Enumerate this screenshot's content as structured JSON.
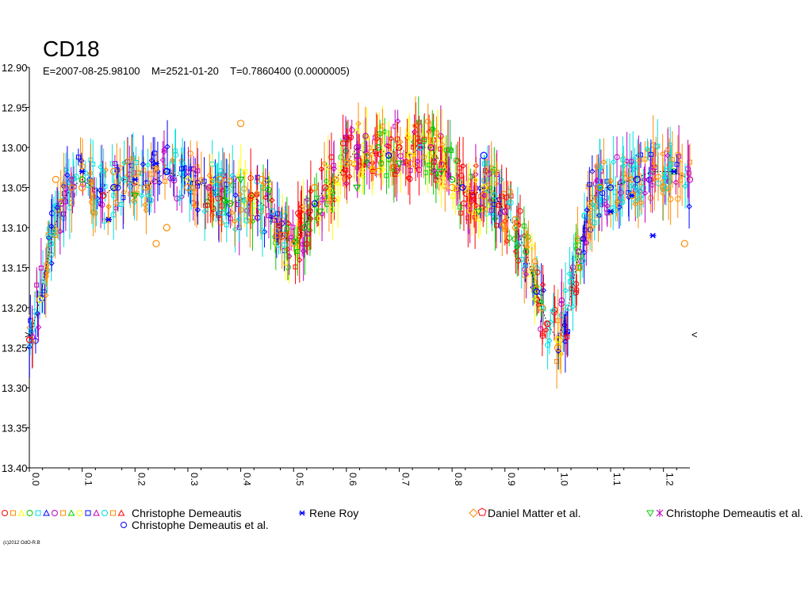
{
  "chart_data": {
    "type": "scatter",
    "title": "CD18",
    "subtitle": "E=2007-08-25.98100    M=2521-01-20    T=0.7860400 (0.0000005)",
    "xlabel": "",
    "ylabel": "",
    "xlim": [
      0.0,
      1.25
    ],
    "ylim": [
      13.4,
      12.9
    ],
    "x_ticks": [
      "0.0",
      "0.1",
      "0.2",
      "0.3",
      "0.4",
      "0.5",
      "0.6",
      "0.7",
      "0.8",
      "0.9",
      "1.0",
      "1.1",
      "1.2"
    ],
    "y_ticks": [
      "12.90",
      "12.95",
      "13.00",
      "13.05",
      "13.10",
      "13.15",
      "13.20",
      "13.25",
      "13.30",
      "13.35",
      "13.40"
    ],
    "grid": false,
    "legend_placement": "bottom",
    "limit_markers": [
      {
        "x": 0.0,
        "y": 13.24,
        "symbol": ">"
      },
      {
        "x": 1.25,
        "y": 13.24,
        "symbol": "<"
      }
    ],
    "series": [
      {
        "name": "Christophe Demeautis",
        "symbol": "mixed",
        "colors": [
          "#ff0000",
          "#ff8c00",
          "#ffff00",
          "#00c000",
          "#00e0e0",
          "#0000ff",
          "#c000c0"
        ],
        "points": [
          [
            0.0,
            13.24
          ],
          [
            0.02,
            13.19
          ],
          [
            0.04,
            13.12
          ],
          [
            0.06,
            13.07
          ],
          [
            0.08,
            13.05
          ],
          [
            0.1,
            13.04
          ],
          [
            0.14,
            13.06
          ],
          [
            0.18,
            13.04
          ],
          [
            0.22,
            13.05
          ],
          [
            0.26,
            13.03
          ],
          [
            0.3,
            13.04
          ],
          [
            0.34,
            13.05
          ],
          [
            0.38,
            13.07
          ],
          [
            0.42,
            13.06
          ],
          [
            0.46,
            13.08
          ],
          [
            0.48,
            13.11
          ],
          [
            0.5,
            13.12
          ],
          [
            0.52,
            13.1
          ],
          [
            0.54,
            13.07
          ],
          [
            0.56,
            13.05
          ],
          [
            0.58,
            13.04
          ],
          [
            0.6,
            13.02
          ],
          [
            0.62,
            13.0
          ],
          [
            0.64,
            13.01
          ],
          [
            0.66,
            13.0
          ],
          [
            0.68,
            13.01
          ],
          [
            0.7,
            13.0
          ],
          [
            0.72,
            13.01
          ],
          [
            0.74,
            13.0
          ],
          [
            0.76,
            13.0
          ],
          [
            0.78,
            13.02
          ],
          [
            0.8,
            13.04
          ],
          [
            0.82,
            13.05
          ],
          [
            0.84,
            13.06
          ],
          [
            0.86,
            13.05
          ],
          [
            0.88,
            13.06
          ],
          [
            0.9,
            13.08
          ],
          [
            0.92,
            13.1
          ],
          [
            0.94,
            13.13
          ],
          [
            0.96,
            13.18
          ],
          [
            0.98,
            13.22
          ],
          [
            1.0,
            13.24
          ],
          [
            1.02,
            13.2
          ],
          [
            1.04,
            13.13
          ],
          [
            1.06,
            13.07
          ],
          [
            1.08,
            13.05
          ],
          [
            1.1,
            13.05
          ],
          [
            1.14,
            13.04
          ],
          [
            1.18,
            13.03
          ],
          [
            1.22,
            13.03
          ],
          [
            1.25,
            13.04
          ]
        ]
      },
      {
        "name": "Rene Roy",
        "symbol": "star",
        "color": "#0000ff",
        "points": [
          [
            0.1,
            13.03
          ],
          [
            0.15,
            13.09
          ],
          [
            0.2,
            13.04
          ],
          [
            0.24,
            13.02
          ],
          [
            1.1,
            13.08
          ],
          [
            1.14,
            13.06
          ],
          [
            1.18,
            13.11
          ],
          [
            1.22,
            13.03
          ]
        ]
      },
      {
        "name": "Daniel Matter et al.",
        "symbol": "circle",
        "color": "#ff8c00",
        "points": [
          [
            0.05,
            13.04
          ],
          [
            0.1,
            13.05
          ],
          [
            0.16,
            13.03
          ],
          [
            0.24,
            13.12
          ],
          [
            0.26,
            13.1
          ],
          [
            0.3,
            13.05
          ],
          [
            0.36,
            13.04
          ],
          [
            0.4,
            12.97
          ],
          [
            0.44,
            13.04
          ],
          [
            0.48,
            13.11
          ],
          [
            0.54,
            13.05
          ],
          [
            0.6,
            13.02
          ],
          [
            0.66,
            13.03
          ],
          [
            0.72,
            13.02
          ],
          [
            0.8,
            13.05
          ],
          [
            0.86,
            13.06
          ],
          [
            0.92,
            13.09
          ],
          [
            0.97,
            13.2
          ],
          [
            1.0,
            13.25
          ],
          [
            1.04,
            13.15
          ],
          [
            1.08,
            13.05
          ],
          [
            1.14,
            13.06
          ],
          [
            1.2,
            13.05
          ],
          [
            1.24,
            13.12
          ]
        ]
      },
      {
        "name": "Christophe Demeautis et al.",
        "symbol": "triangle",
        "color": "#00c000",
        "points": [
          [
            0.2,
            13.06
          ],
          [
            0.4,
            13.04
          ],
          [
            0.55,
            13.08
          ],
          [
            0.62,
            13.05
          ],
          [
            0.7,
            13.02
          ],
          [
            0.78,
            13.03
          ],
          [
            0.85,
            13.08
          ]
        ]
      },
      {
        "name": "Christophe Demeautis et al.",
        "symbol": "circle",
        "color": "#0000ff",
        "points": [
          [
            0.16,
            13.05
          ],
          [
            0.26,
            13.03
          ],
          [
            0.86,
            13.01
          ],
          [
            1.15,
            13.04
          ]
        ]
      }
    ]
  },
  "legend": {
    "entries": [
      {
        "label": "Christophe Demeautis",
        "symbols": "mixed"
      },
      {
        "label": "Rene Roy",
        "symbols": "star"
      },
      {
        "label": "Daniel Matter et al.",
        "symbols": "diamond-pentagon"
      },
      {
        "label": "Christophe Demeautis et al.",
        "symbols": "triangle-star"
      },
      {
        "label": "Christophe Demeautis et al.",
        "symbols": "circle"
      }
    ]
  },
  "footer": {
    "copyright": "(c)2012 OdO-R.B"
  }
}
